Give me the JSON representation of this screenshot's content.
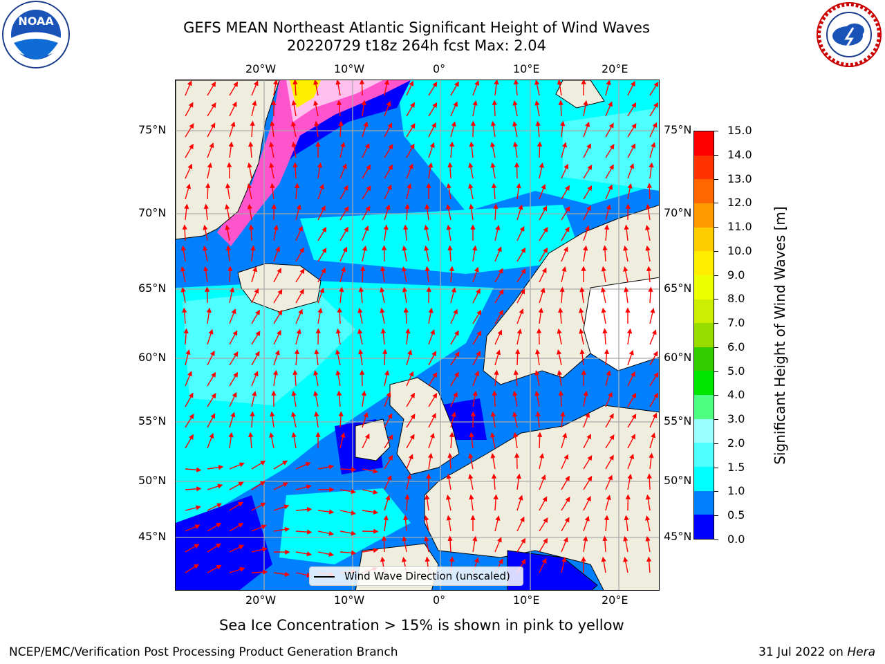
{
  "title": {
    "line1": "GEFS MEAN Northeast Atlantic Significant Height of Wind Waves",
    "line2": "20220729 t18z 264h fcst   Max: 2.04"
  },
  "logos": {
    "left": "noaa-logo",
    "right": "national-weather-service-logo"
  },
  "map": {
    "lon_ticks": [
      "20°W",
      "10°W",
      "0°",
      "10°E",
      "20°E"
    ],
    "lat_ticks": [
      "75°N",
      "70°N",
      "65°N",
      "60°N",
      "55°N",
      "50°N",
      "45°N"
    ],
    "legend_label": "Wind Wave Direction (unscaled)",
    "colors": {
      "land": "#efedde",
      "arrow": "#ff0000",
      "grid": "#aaaaaa"
    }
  },
  "colorbar": {
    "label": "Significant Height of Wind Waves [m]",
    "ticks": [
      "15.0",
      "14.0",
      "13.0",
      "12.0",
      "11.0",
      "10.0",
      "9.0",
      "8.0",
      "7.0",
      "6.0",
      "5.0",
      "4.0",
      "3.0",
      "2.0",
      "1.5",
      "1.0",
      "0.5",
      "0.0"
    ],
    "colors": [
      "#0000ff",
      "#0080ff",
      "#00ffff",
      "#4dffff",
      "#99ffff",
      "#4dff80",
      "#00e600",
      "#33cc00",
      "#99dd00",
      "#ccee00",
      "#eeff00",
      "#ffee00",
      "#ffcc00",
      "#ff9900",
      "#ff6600",
      "#ff3300",
      "#ff0000"
    ]
  },
  "caption": "Sea Ice Concentration > 15% is shown in pink to yellow",
  "footer": {
    "left": "NCEP/EMC/Verification Post Processing Product Generation Branch",
    "right_date": "31 Jul 2022 on ",
    "right_host": "Hera"
  }
}
